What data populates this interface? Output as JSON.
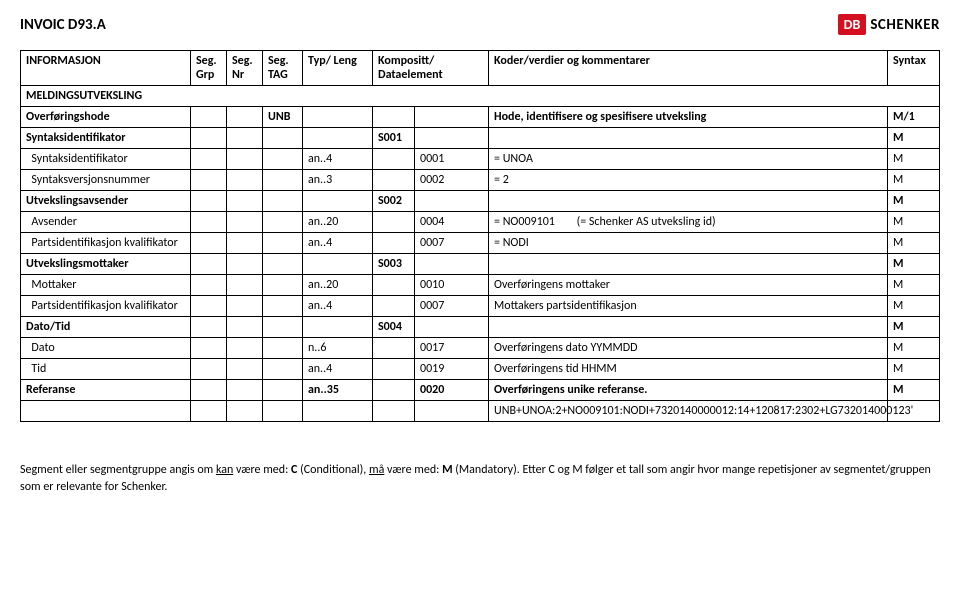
{
  "doc_title": "INVOIC D93.A",
  "logo": {
    "badge": "DB",
    "text": "SCHENKER"
  },
  "header": {
    "info": "INFORMASJON",
    "seg_grp": "Seg. Grp",
    "seg_nr": "Seg. Nr",
    "seg_tag": "Seg. TAG",
    "typ_leng": "Typ/ Leng",
    "komp": "Kompositt/ Dataelement",
    "koder": "Koder/verdier og kommentarer",
    "syntax": "Syntax"
  },
  "r_section": {
    "label": "MELDINGSUTVEKSLING"
  },
  "r1": {
    "c1": "Overføringshode",
    "c4": "UNB",
    "c8": "Hode, identifisere og spesifisere utveksling",
    "c9": "M/1"
  },
  "r2": {
    "c1": "Syntaksidentifikator",
    "c6": "S001",
    "c9": "M"
  },
  "r3": {
    "c1": "  Syntaksidentifikator",
    "c5": "an..4",
    "c7": "0001",
    "c8": "= UNOA",
    "c9": "M"
  },
  "r4": {
    "c1": "  Syntaksversjonsnummer",
    "c5": "an..3",
    "c7": "0002",
    "c8": "= 2",
    "c9": "M"
  },
  "r5": {
    "c1": "Utvekslingsavsender",
    "c6": "S002",
    "c9": "M"
  },
  "r6": {
    "c1": "  Avsender",
    "c5": "an..20",
    "c7": "0004",
    "c8": "= NO009101        (= Schenker AS utveksling id)",
    "c9": "M"
  },
  "r7": {
    "c1": "  Partsidentifikasjon kvalifikator",
    "c5": "an..4",
    "c7": "0007",
    "c8": "= NODI",
    "c9": "M"
  },
  "r8": {
    "c1": "Utvekslingsmottaker",
    "c6": "S003",
    "c9": "M"
  },
  "r9": {
    "c1": "  Mottaker",
    "c5": "an..20",
    "c7": "0010",
    "c8": "Overføringens mottaker",
    "c9": "M"
  },
  "r10": {
    "c1": "  Partsidentifikasjon kvalifikator",
    "c5": "an..4",
    "c7": "0007",
    "c8": "Mottakers partsidentifikasjon",
    "c9": "M"
  },
  "r11": {
    "c1": "Dato/Tid",
    "c6": "S004",
    "c9": "M"
  },
  "r12": {
    "c1": "  Dato",
    "c5": "n..6",
    "c7": "0017",
    "c8": "Overføringens dato YYMMDD",
    "c9": "M"
  },
  "r13": {
    "c1": "  Tid",
    "c5": "an..4",
    "c7": "0019",
    "c8": "Overføringens tid HHMM",
    "c9": "M"
  },
  "r14": {
    "c1": "Referanse",
    "c5": "an..35",
    "c7": "0020",
    "c8": "Overføringens unike referanse.",
    "c9": "M"
  },
  "r15": {
    "c8": "UNB+UNOA:2+NO009101:NODI+7320140000012:14+120817:2302+LG732014000123'"
  },
  "footer": {
    "line1a": "Segment eller segmentgruppe angis om ",
    "kan": "kan",
    "line1b": " være med: ",
    "c": "C",
    "line1c": " (Conditional), ",
    "ma": "må",
    "line1d": " være med: ",
    "m": "M",
    "line1e": " (Mandatory). Etter C og M følger et tall som angir hvor mange repetisjoner av segmentet/gruppen som er relevante for Schenker."
  }
}
